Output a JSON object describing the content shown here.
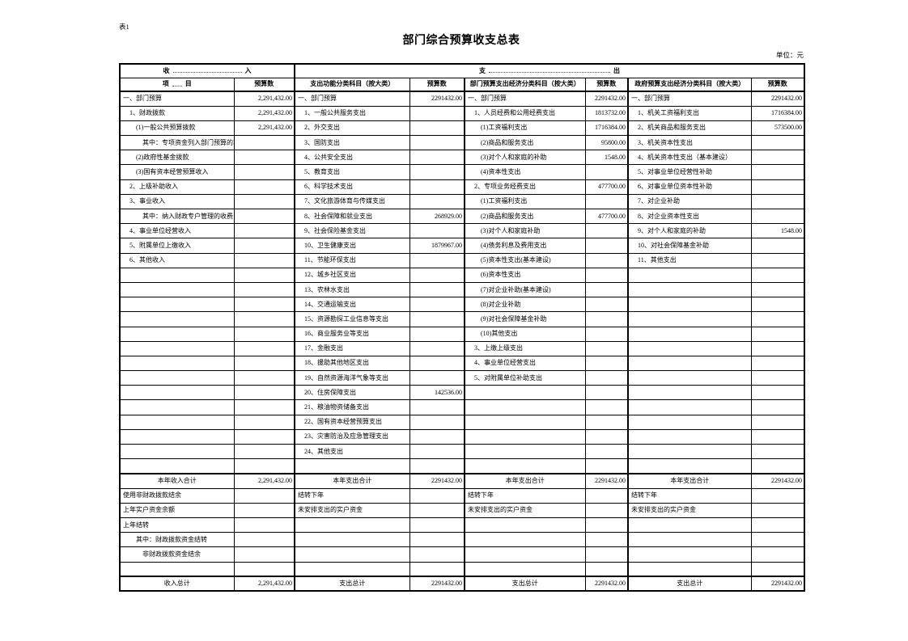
{
  "page": {
    "sheet_label": "表1",
    "title": "部门综合预算收支总表",
    "unit_label": "单位：元"
  },
  "table": {
    "headers": {
      "income": {
        "left": "收",
        "right": "入"
      },
      "expense": {
        "left": "支",
        "right": "出"
      },
      "item": {
        "left": "项",
        "right": "目"
      },
      "budget": "预算数",
      "func_class": "支出功能分类科目（按大类）",
      "dept_econ_class": "部门预算支出经济分类科目（按大类）",
      "gov_econ_class": "政府预算支出经济分类科目（按大类）"
    },
    "rows": [
      {
        "cells": [
          {
            "t": "一、部门预算",
            "i": 0
          },
          "2,291,432.00",
          {
            "t": "一、部门预算",
            "i": 0
          },
          "2291432.00",
          {
            "t": "一、部门预算",
            "i": 0
          },
          "2291432.00",
          {
            "t": "一、部门预算",
            "i": 0
          },
          "2291432.00"
        ]
      },
      {
        "cells": [
          {
            "t": "1、财政拨款",
            "i": 1
          },
          "2,291,432.00",
          {
            "t": "1、一般公共服务支出",
            "i": 1
          },
          "",
          {
            "t": "1、人员经费和公用经费支出",
            "i": 1
          },
          "1813732.00",
          {
            "t": "1、机关工资福利支出",
            "i": 1
          },
          "1716384.00"
        ]
      },
      {
        "cells": [
          {
            "t": "(1)一般公共预算拨款",
            "i": 2
          },
          "2,291,432.00",
          {
            "t": "2、外交支出",
            "i": 1
          },
          "",
          {
            "t": "(1)工资福利支出",
            "i": 2
          },
          "1716384.00",
          {
            "t": "2、机关商品和服务支出",
            "i": 1
          },
          "573500.00"
        ]
      },
      {
        "cells": [
          {
            "t": "其中：专项资金列入部门预算的项目",
            "i": 3
          },
          "",
          {
            "t": "3、国防支出",
            "i": 1
          },
          "",
          {
            "t": "(2)商品和服务支出",
            "i": 2
          },
          "95800.00",
          {
            "t": "3、机关资本性支出",
            "i": 1
          },
          ""
        ]
      },
      {
        "cells": [
          {
            "t": "(2)政府性基金拨款",
            "i": 2
          },
          "",
          {
            "t": "4、公共安全支出",
            "i": 1
          },
          "",
          {
            "t": "(3)对个人和家庭的补助",
            "i": 2
          },
          "1548.00",
          {
            "t": "4、机关资本性支出（基本建设）",
            "i": 1
          },
          ""
        ]
      },
      {
        "cells": [
          {
            "t": "(3)国有资本经营预算收入",
            "i": 2
          },
          "",
          {
            "t": "5、教育支出",
            "i": 1
          },
          "",
          {
            "t": "(4)资本性支出",
            "i": 2
          },
          "",
          {
            "t": "5、对事业单位经营性补助",
            "i": 1
          },
          ""
        ]
      },
      {
        "cells": [
          {
            "t": "2、上级补助收入",
            "i": 1
          },
          "",
          {
            "t": "6、科学技术支出",
            "i": 1
          },
          "",
          {
            "t": "2、专项业务经费支出",
            "i": 1
          },
          "477700.00",
          {
            "t": "6、对事业单位资本性补助",
            "i": 1
          },
          ""
        ]
      },
      {
        "cells": [
          {
            "t": "3、事业收入",
            "i": 1
          },
          "",
          {
            "t": "7、文化旅游体育与传媒支出",
            "i": 1
          },
          "",
          {
            "t": "(1)工资福利支出",
            "i": 2
          },
          "",
          {
            "t": "7、对企业补助",
            "i": 1
          },
          ""
        ]
      },
      {
        "cells": [
          {
            "t": "其中：纳入财政专户管理的收费",
            "i": 3
          },
          "",
          {
            "t": "8、社会保障和就业支出",
            "i": 1
          },
          "268929.00",
          {
            "t": "(2)商品和服务支出",
            "i": 2
          },
          "477700.00",
          {
            "t": "8、对企业资本性支出",
            "i": 1
          },
          ""
        ]
      },
      {
        "cells": [
          {
            "t": "4、事业单位经营收入",
            "i": 1
          },
          "",
          {
            "t": "9、社会保险基金支出",
            "i": 1
          },
          "",
          {
            "t": "(3)对个人和家庭补助",
            "i": 2
          },
          "",
          {
            "t": "9、对个人和家庭的补助",
            "i": 1
          },
          "1548.00"
        ]
      },
      {
        "cells": [
          {
            "t": "5、附属单位上缴收入",
            "i": 1
          },
          "",
          {
            "t": "10、卫生健康支出",
            "i": 1
          },
          "1879967.00",
          {
            "t": "(4)债务利息及费用支出",
            "i": 2
          },
          "",
          {
            "t": "10、对社会保障基金补助",
            "i": 1
          },
          ""
        ]
      },
      {
        "cells": [
          {
            "t": "6、其他收入",
            "i": 1
          },
          "",
          {
            "t": "11、节能环保支出",
            "i": 1
          },
          "",
          {
            "t": "(5)资本性支出(基本建设)",
            "i": 2
          },
          "",
          {
            "t": "11、其他支出",
            "i": 1
          },
          ""
        ]
      },
      {
        "cells": [
          null,
          "",
          {
            "t": "12、城乡社区支出",
            "i": 1
          },
          "",
          {
            "t": "(6)资本性支出",
            "i": 2
          },
          "",
          null,
          ""
        ]
      },
      {
        "cells": [
          null,
          "",
          {
            "t": "13、农林水支出",
            "i": 1
          },
          "",
          {
            "t": "(7)对企业补助(基本建设)",
            "i": 2
          },
          "",
          null,
          ""
        ]
      },
      {
        "cells": [
          null,
          "",
          {
            "t": "14、交通运输支出",
            "i": 1
          },
          "",
          {
            "t": "(8)对企业补助",
            "i": 2
          },
          "",
          null,
          ""
        ]
      },
      {
        "cells": [
          null,
          "",
          {
            "t": "15、资源勘探工业信息等支出",
            "i": 1
          },
          "",
          {
            "t": "(9)对社会保障基金补助",
            "i": 2
          },
          "",
          null,
          ""
        ]
      },
      {
        "cells": [
          null,
          "",
          {
            "t": "16、商业服务业等支出",
            "i": 1
          },
          "",
          {
            "t": "(10)其他支出",
            "i": 2
          },
          "",
          null,
          ""
        ]
      },
      {
        "cells": [
          null,
          "",
          {
            "t": "17、金融支出",
            "i": 1
          },
          "",
          {
            "t": "3、上缴上级支出",
            "i": 1
          },
          "",
          null,
          ""
        ]
      },
      {
        "cells": [
          null,
          "",
          {
            "t": "18、援助其他地区支出",
            "i": 1
          },
          "",
          {
            "t": "4、事业单位经营支出",
            "i": 1
          },
          "",
          null,
          ""
        ]
      },
      {
        "cells": [
          null,
          "",
          {
            "t": "19、自然资源海洋气象等支出",
            "i": 1
          },
          "",
          {
            "t": "5、对附属单位补助支出",
            "i": 1
          },
          "",
          null,
          ""
        ]
      },
      {
        "cells": [
          null,
          "",
          {
            "t": "20、住房保障支出",
            "i": 1
          },
          "142536.00",
          null,
          "",
          null,
          ""
        ]
      },
      {
        "cells": [
          null,
          "",
          {
            "t": "21、粮油物资储备支出",
            "i": 1
          },
          "",
          null,
          "",
          null,
          ""
        ]
      },
      {
        "cells": [
          null,
          "",
          {
            "t": "22、国有资本经营预算支出",
            "i": 1
          },
          "",
          null,
          "",
          null,
          ""
        ]
      },
      {
        "cells": [
          null,
          "",
          {
            "t": "23、灾害防治及应急管理支出",
            "i": 1
          },
          "",
          null,
          "",
          null,
          ""
        ]
      },
      {
        "cells": [
          null,
          "",
          {
            "t": "24、其他支出",
            "i": 1
          },
          "",
          null,
          "",
          null,
          ""
        ]
      },
      {
        "cells": [
          null,
          "",
          null,
          "",
          null,
          "",
          null,
          ""
        ]
      },
      {
        "emph": true,
        "cells": [
          {
            "t": "本年收入合计",
            "b": true,
            "c": true
          },
          "2,291,432.00",
          {
            "t": "本年支出合计",
            "b": true,
            "c": true
          },
          "2291432.00",
          {
            "t": "本年支出合计",
            "b": true,
            "c": true
          },
          "2291432.00",
          {
            "t": "本年支出合计",
            "b": true,
            "c": true
          },
          "2291432.00"
        ]
      },
      {
        "cells": [
          {
            "t": "使用非财政拨款结余",
            "i": 0
          },
          "",
          {
            "t": "结转下年",
            "i": 0
          },
          "",
          {
            "t": "结转下年",
            "i": 0
          },
          "",
          {
            "t": "结转下年",
            "i": 0
          },
          ""
        ]
      },
      {
        "cells": [
          {
            "t": "上年实户资金余额",
            "i": 0
          },
          "",
          {
            "t": "未安排支出的实户资金",
            "i": 0
          },
          "",
          {
            "t": "未安排支出的实户资金",
            "i": 0
          },
          "",
          {
            "t": "未安排支出的实户资金",
            "i": 0
          },
          ""
        ]
      },
      {
        "cells": [
          {
            "t": "上年结转",
            "i": 0
          },
          "",
          null,
          "",
          null,
          "",
          null,
          ""
        ]
      },
      {
        "cells": [
          {
            "t": "其中：财政拨款资金结转",
            "i": 2
          },
          "",
          null,
          "",
          null,
          "",
          null,
          ""
        ]
      },
      {
        "cells": [
          {
            "t": "非财政拨款资金结余",
            "i": 3
          },
          "",
          null,
          "",
          null,
          "",
          null,
          ""
        ]
      },
      {
        "cells": [
          null,
          "",
          null,
          "",
          null,
          "",
          null,
          ""
        ]
      },
      {
        "emph": true,
        "cells": [
          {
            "t": "收入总计",
            "b": true,
            "c": true
          },
          "2,291,432.00",
          {
            "t": "支出总计",
            "b": true,
            "c": true
          },
          "2291432.00",
          {
            "t": "支出总计",
            "b": true,
            "c": true
          },
          "2291432.00",
          {
            "t": "支出总计",
            "b": true,
            "c": true
          },
          "2291432.00"
        ]
      }
    ]
  }
}
